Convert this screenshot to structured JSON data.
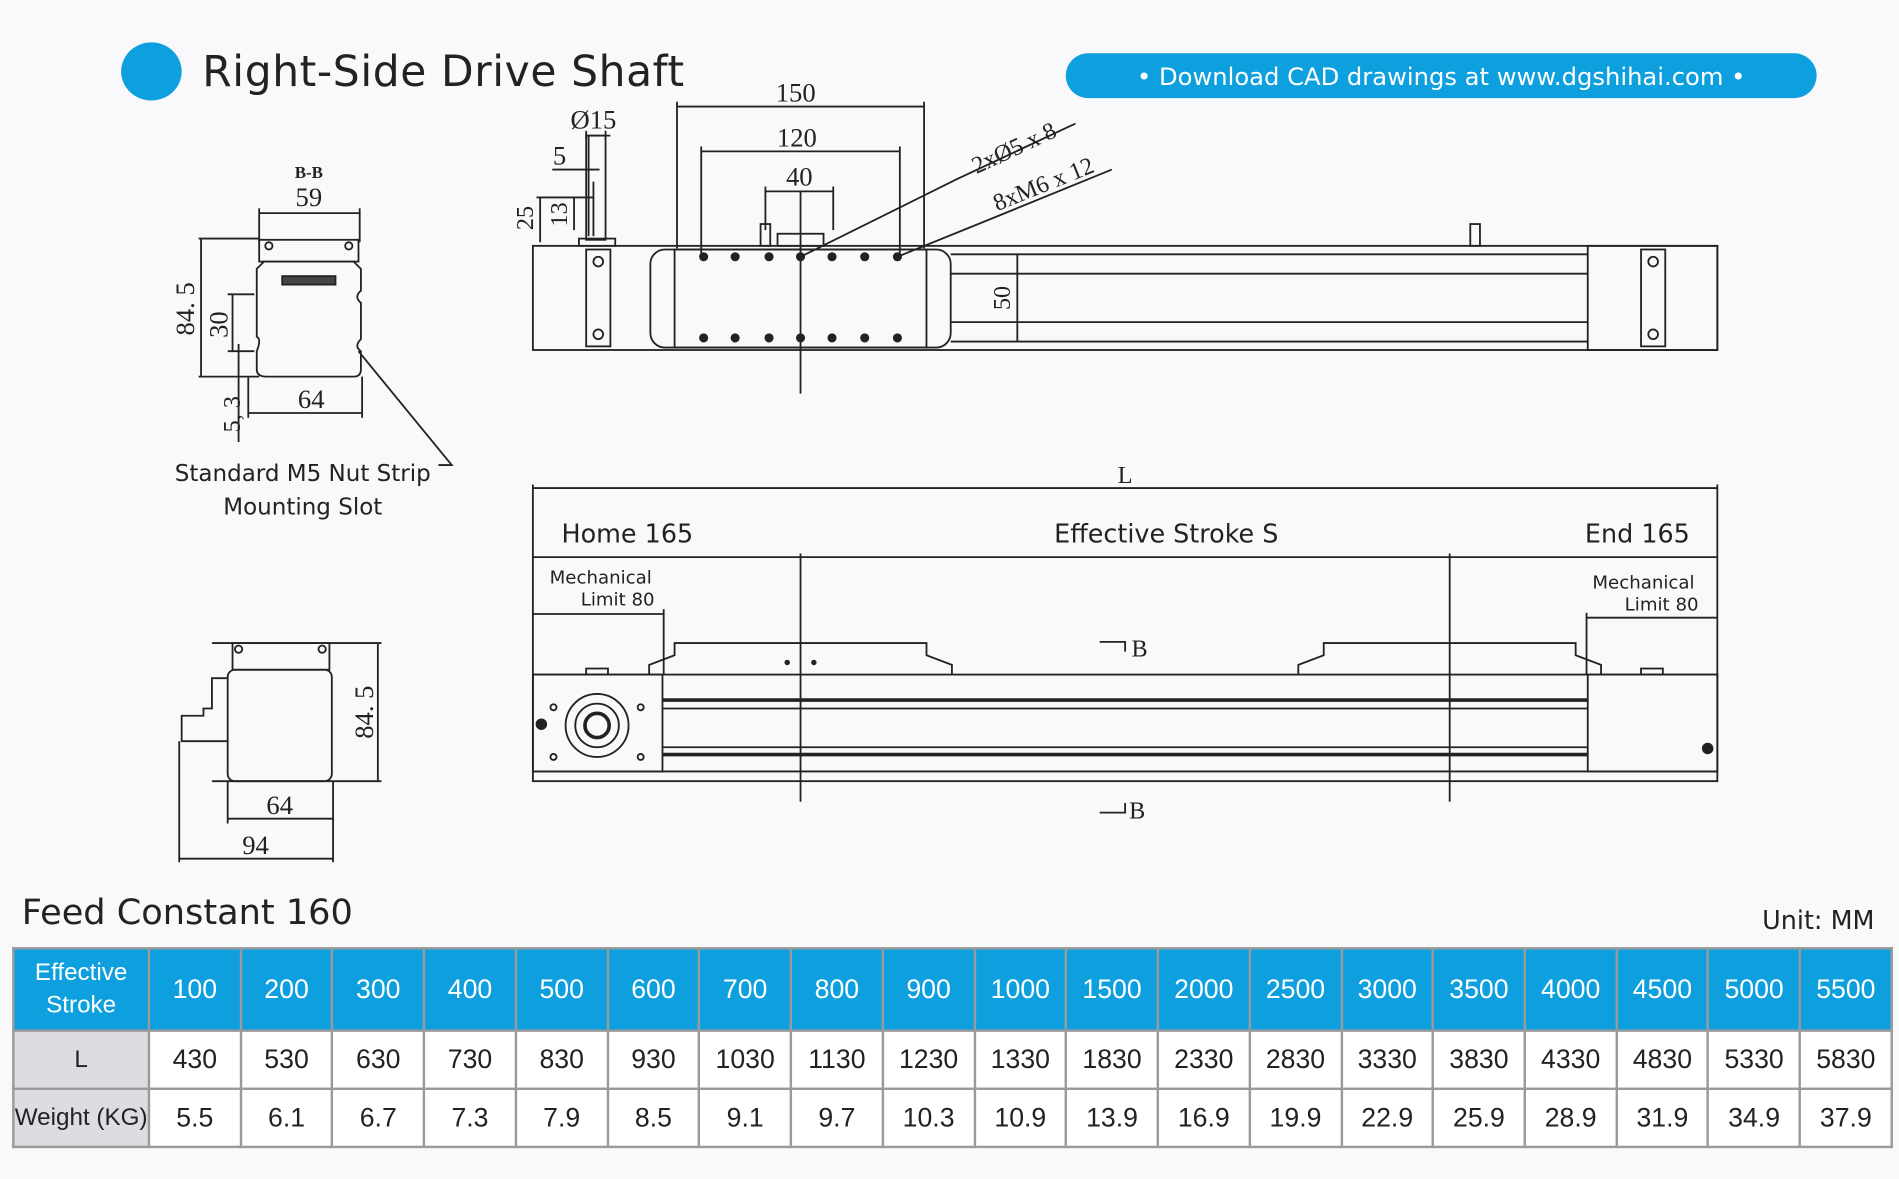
{
  "header": {
    "title": "Right-Side Drive Shaft",
    "banner": "• Download CAD drawings at www.dgshihai.com •",
    "accent_color": "#0ea0de"
  },
  "drawing": {
    "section_label": "B-B",
    "section_dims": {
      "width_top": "59",
      "height": "84. 5",
      "slot_pitch": "30",
      "slot_size": "5, 3",
      "width_bottom": "64"
    },
    "nut_strip_note": [
      "Standard M5 Nut Strip",
      "Mounting Slot"
    ],
    "shaft_dims": {
      "diameter": "Ø15",
      "key": "5",
      "length": "25",
      "key_length": "13"
    },
    "carriage_dims": {
      "d150": "150",
      "d120": "120",
      "d40": "40",
      "holes_a": "2xØ5 x 8",
      "holes_b": "8xM6 x 12",
      "height": "50"
    },
    "front": {
      "L": "L",
      "home": "Home 165",
      "stroke": "Effective Stroke S",
      "end": "End 165",
      "mech_left": [
        "Mechanical",
        "Limit 80"
      ],
      "mech_right": [
        "Mechanical",
        "Limit 80"
      ],
      "section_mark": "B"
    },
    "end_view": {
      "height": "84. 5",
      "width": "64",
      "total": "94"
    }
  },
  "table": {
    "title": "Feed Constant 160",
    "unit": "Unit: MM",
    "header_label": [
      "Effective",
      "Stroke"
    ],
    "strokes": [
      "100",
      "200",
      "300",
      "400",
      "500",
      "600",
      "700",
      "800",
      "900",
      "1000",
      "1500",
      "2000",
      "2500",
      "3000",
      "3500",
      "4000",
      "4500",
      "5000",
      "5500"
    ],
    "rows": [
      {
        "label": "L",
        "values": [
          "430",
          "530",
          "630",
          "730",
          "830",
          "930",
          "1030",
          "1130",
          "1230",
          "1330",
          "1830",
          "2330",
          "2830",
          "3330",
          "3830",
          "4330",
          "4830",
          "5330",
          "5830"
        ]
      },
      {
        "label": "Weight (KG)",
        "values": [
          "5.5",
          "6.1",
          "6.7",
          "7.3",
          "7.9",
          "8.5",
          "9.1",
          "9.7",
          "10.3",
          "10.9",
          "13.9",
          "16.9",
          "19.9",
          "22.9",
          "25.9",
          "28.9",
          "31.9",
          "34.9",
          "37.9"
        ]
      }
    ]
  }
}
